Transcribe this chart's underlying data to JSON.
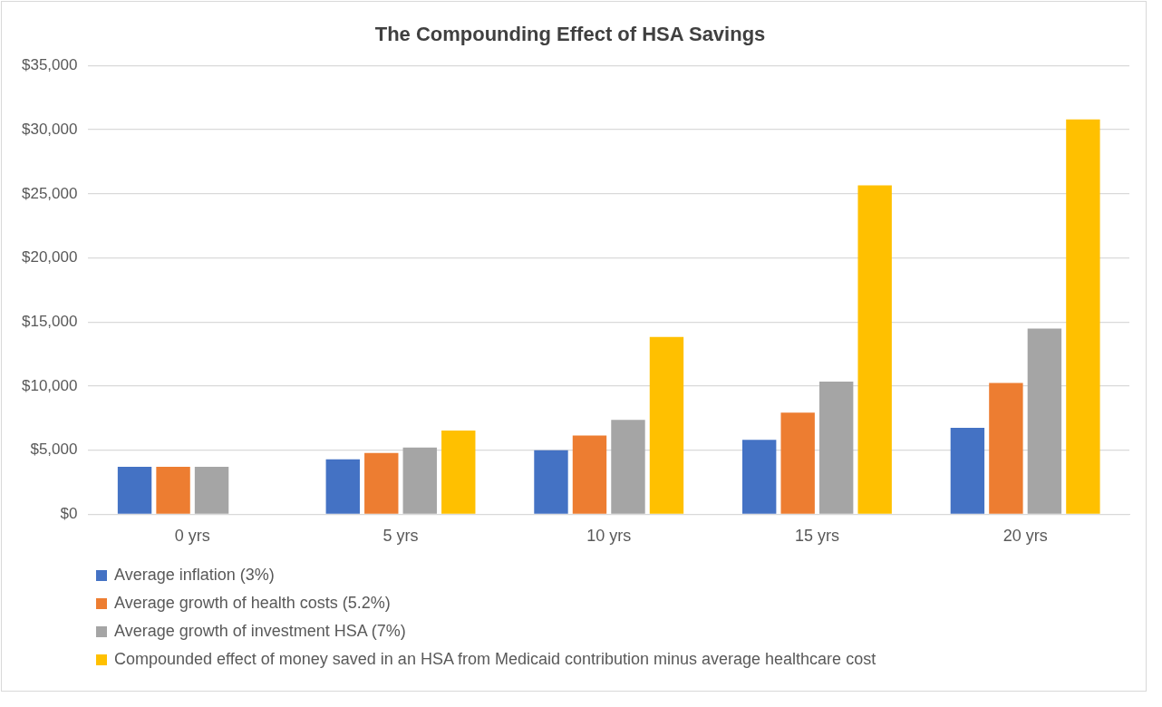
{
  "chart_data": {
    "type": "bar",
    "title": "The Compounding Effect of HSA Savings",
    "categories": [
      "0 yrs",
      "5 yrs",
      "10 yrs",
      "15 yrs",
      "20 yrs"
    ],
    "series": [
      {
        "name": "Average inflation (3%)",
        "color": "#4472c4",
        "values": [
          3700,
          4280,
          5000,
          5810,
          6740
        ]
      },
      {
        "name": "Average growth of health costs (5.2%)",
        "color": "#ed7d31",
        "values": [
          3700,
          4790,
          6140,
          7930,
          10240
        ]
      },
      {
        "name": "Average growth of investment HSA (7%)",
        "color": "#a5a5a5",
        "values": [
          3700,
          5210,
          7370,
          10360,
          14490
        ]
      },
      {
        "name": "Compounded effect of money saved in an HSA from Medicaid contribution minus average healthcare cost",
        "color": "#ffc000",
        "values": [
          null,
          6530,
          13830,
          25660,
          30810
        ]
      }
    ],
    "ylim": [
      0,
      35000
    ],
    "yticks": [
      {
        "value": 0,
        "label": "$0"
      },
      {
        "value": 5000,
        "label": "$5,000"
      },
      {
        "value": 10000,
        "label": "$10,000"
      },
      {
        "value": 15000,
        "label": "$15,000"
      },
      {
        "value": 20000,
        "label": "$20,000"
      },
      {
        "value": 25000,
        "label": "$25,000"
      },
      {
        "value": 30000,
        "label": "$30,000"
      },
      {
        "value": 35000,
        "label": "$35,000"
      }
    ],
    "grid": "y",
    "legend": "bottom"
  }
}
